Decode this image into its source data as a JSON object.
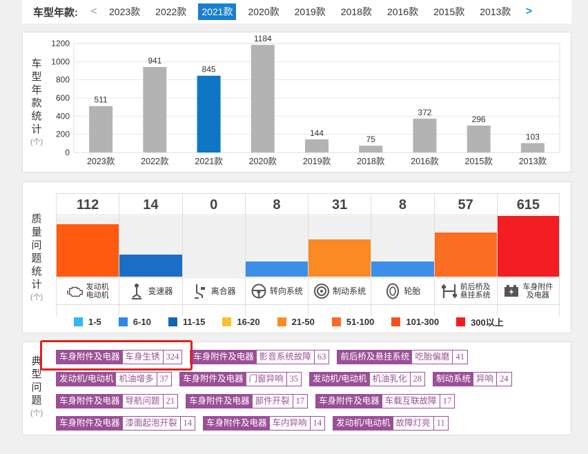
{
  "year_bar": {
    "title": "车型年款:",
    "prev": "<",
    "next": ">",
    "years": [
      "2023款",
      "2022款",
      "2021款",
      "2020款",
      "2019款",
      "2018款",
      "2016款",
      "2015款",
      "2013款"
    ],
    "active_index": 2
  },
  "panel1": {
    "side_label": [
      "车",
      "型",
      "年",
      "款",
      "统",
      "计"
    ],
    "unit": "(个)"
  },
  "chart_data": {
    "type": "bar",
    "categories": [
      "2023款",
      "2022款",
      "2021款",
      "2020款",
      "2019款",
      "2018款",
      "2016款",
      "2015款",
      "2013款"
    ],
    "values": [
      511,
      941,
      845,
      1184,
      144,
      75,
      372,
      296,
      103
    ],
    "highlight_index": 2,
    "bar_color": "#b3b3b3",
    "highlight_color": "#0f76c6",
    "ylim": [
      0,
      1200
    ],
    "yticks": [
      0,
      200,
      400,
      600,
      800,
      1000,
      1200
    ],
    "grid": true
  },
  "panel2": {
    "side_label": [
      "质",
      "量",
      "问",
      "题",
      "统",
      "计"
    ],
    "unit": "(个)",
    "items": [
      {
        "count": "112",
        "value": 112,
        "label": "发动机\n电动机",
        "icon": "engine-icon",
        "color": "#ff5a0f",
        "fill": 0.86
      },
      {
        "count": "14",
        "value": 14,
        "label": "变速器",
        "icon": "gearbox-icon",
        "color": "#1a6fc4",
        "fill": 0.36
      },
      {
        "count": "0",
        "value": 0,
        "label": "离合器",
        "icon": "clutch-icon",
        "color": "#cccccc",
        "fill": 0
      },
      {
        "count": "8",
        "value": 8,
        "label": "转向系统",
        "icon": "steering-wheel-icon",
        "color": "#3d8ee8",
        "fill": 0.25
      },
      {
        "count": "31",
        "value": 31,
        "label": "制动系统",
        "icon": "brake-disc-icon",
        "color": "#fb8a24",
        "fill": 0.61
      },
      {
        "count": "8",
        "value": 8,
        "label": "轮胎",
        "icon": "tire-icon",
        "color": "#3d8ee8",
        "fill": 0.25
      },
      {
        "count": "57",
        "value": 57,
        "label": "前后桥及\n悬挂系统",
        "icon": "suspension-icon",
        "color": "#fb6d21",
        "fill": 0.73
      },
      {
        "count": "615",
        "value": 615,
        "label": "车身附件\n及电器",
        "icon": "battery-icon",
        "color": "#f21e21",
        "fill": 1.0
      }
    ],
    "legend": [
      {
        "label": "1-5",
        "color": "#34b5f5"
      },
      {
        "label": "6-10",
        "color": "#2f86e8"
      },
      {
        "label": "11-15",
        "color": "#0f67b4"
      },
      {
        "label": "16-20",
        "color": "#fbc02d"
      },
      {
        "label": "21-50",
        "color": "#fb8c24"
      },
      {
        "label": "51-100",
        "color": "#fb6a21"
      },
      {
        "label": "101-300",
        "color": "#f4511e"
      },
      {
        "label": "300以上",
        "color": "#f21e21"
      }
    ]
  },
  "panel3": {
    "side_label": [
      "典",
      "型",
      "问",
      "题"
    ],
    "unit": "(个)",
    "rows": [
      [
        {
          "category": "车身附件及电器",
          "issue": "车身生锈",
          "count": "324"
        },
        {
          "category": "车身附件及电器",
          "issue": "影音系统故障",
          "count": "63"
        },
        {
          "category": "前后桥及悬挂系统",
          "issue": "吃胎偏磨",
          "count": "41"
        }
      ],
      [
        {
          "category": "发动机/电动机",
          "issue": "机油增多",
          "count": "37"
        },
        {
          "category": "车身附件及电器",
          "issue": "门窗异响",
          "count": "35"
        },
        {
          "category": "发动机/电动机",
          "issue": "机油乳化",
          "count": "28"
        },
        {
          "category": "制动系统",
          "issue": "异响",
          "count": "24"
        }
      ],
      [
        {
          "category": "车身附件及电器",
          "issue": "导航问题",
          "count": "21"
        },
        {
          "category": "车身附件及电器",
          "issue": "部件开裂",
          "count": "17"
        },
        {
          "category": "车身附件及电器",
          "issue": "车载互联故障",
          "count": "17"
        }
      ],
      [
        {
          "category": "车身附件及电器",
          "issue": "漆面起泡开裂",
          "count": "14"
        },
        {
          "category": "车身附件及电器",
          "issue": "车内异响",
          "count": "14"
        },
        {
          "category": "发动机/电动机",
          "issue": "故障灯亮",
          "count": "11"
        }
      ]
    ],
    "tag_color": "#9b4f96",
    "highlight_color": "#e0201f"
  }
}
